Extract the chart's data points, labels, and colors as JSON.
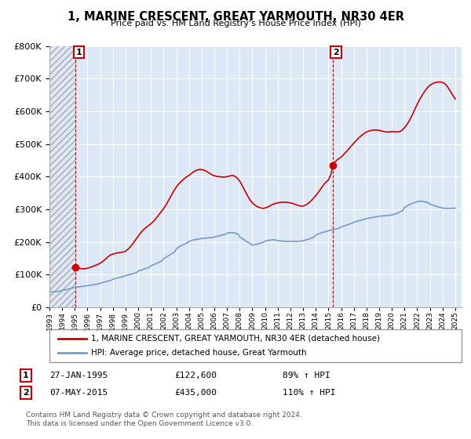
{
  "title": "1, MARINE CRESCENT, GREAT YARMOUTH, NR30 4ER",
  "subtitle": "Price paid vs. HM Land Registry's House Price Index (HPI)",
  "legend_line1": "1, MARINE CRESCENT, GREAT YARMOUTH, NR30 4ER (detached house)",
  "legend_line2": "HPI: Average price, detached house, Great Yarmouth",
  "footer1": "Contains HM Land Registry data © Crown copyright and database right 2024.",
  "footer2": "This data is licensed under the Open Government Licence v3.0.",
  "annotation1_date": "27-JAN-1995",
  "annotation1_price": "£122,600",
  "annotation1_hpi": "89% ↑ HPI",
  "annotation2_date": "07-MAY-2015",
  "annotation2_price": "£435,000",
  "annotation2_hpi": "110% ↑ HPI",
  "red_color": "#cc0000",
  "blue_color": "#7799cc",
  "point1_x": 1995.07,
  "point1_y": 122600,
  "point2_x": 2015.35,
  "point2_y": 435000,
  "ylim": [
    0,
    800000
  ],
  "xlim_start": 1993.0,
  "xlim_end": 2025.5,
  "hatch_end_x": 1995.07,
  "hpi_line_x": [
    1993.0,
    1993.1,
    1993.2,
    1993.3,
    1993.4,
    1993.5,
    1993.6,
    1993.7,
    1993.8,
    1993.9,
    1994.0,
    1994.1,
    1994.2,
    1994.3,
    1994.4,
    1994.5,
    1994.6,
    1994.7,
    1994.8,
    1994.9,
    1995.0,
    1995.2,
    1995.4,
    1995.6,
    1995.8,
    1996.0,
    1996.3,
    1996.6,
    1996.9,
    1997.0,
    1997.3,
    1997.6,
    1997.9,
    1998.0,
    1998.3,
    1998.6,
    1998.9,
    1999.0,
    1999.3,
    1999.6,
    1999.9,
    2000.0,
    2000.3,
    2000.6,
    2000.9,
    2001.0,
    2001.3,
    2001.6,
    2001.9,
    2002.0,
    2002.3,
    2002.6,
    2002.9,
    2003.0,
    2003.3,
    2003.6,
    2003.9,
    2004.0,
    2004.3,
    2004.6,
    2004.9,
    2005.0,
    2005.3,
    2005.6,
    2005.9,
    2006.0,
    2006.3,
    2006.6,
    2006.9,
    2007.0,
    2007.3,
    2007.6,
    2007.9,
    2008.0,
    2008.3,
    2008.6,
    2008.9,
    2009.0,
    2009.3,
    2009.6,
    2009.9,
    2010.0,
    2010.3,
    2010.6,
    2010.9,
    2011.0,
    2011.3,
    2011.6,
    2011.9,
    2012.0,
    2012.3,
    2012.6,
    2012.9,
    2013.0,
    2013.3,
    2013.6,
    2013.9,
    2014.0,
    2014.3,
    2014.6,
    2014.9,
    2015.0,
    2015.3,
    2015.6,
    2015.9,
    2016.0,
    2016.3,
    2016.6,
    2016.9,
    2017.0,
    2017.3,
    2017.6,
    2017.9,
    2018.0,
    2018.3,
    2018.6,
    2018.9,
    2019.0,
    2019.3,
    2019.6,
    2019.9,
    2020.0,
    2020.3,
    2020.6,
    2020.9,
    2021.0,
    2021.3,
    2021.6,
    2021.9,
    2022.0,
    2022.3,
    2022.6,
    2022.9,
    2023.0,
    2023.3,
    2023.6,
    2023.9,
    2024.0,
    2024.3,
    2024.6,
    2024.9,
    2025.0
  ],
  "hpi_line_y": [
    48000,
    47500,
    47000,
    47200,
    47500,
    48000,
    48500,
    49000,
    49500,
    50000,
    51000,
    52000,
    53000,
    54000,
    55000,
    56000,
    57000,
    58000,
    59000,
    60000,
    61000,
    62000,
    63000,
    64000,
    65000,
    66000,
    68000,
    70000,
    72000,
    74000,
    77000,
    80000,
    83000,
    86000,
    89000,
    92000,
    95000,
    97000,
    100000,
    103000,
    107000,
    111000,
    115000,
    119000,
    123000,
    127000,
    132000,
    137000,
    143000,
    149000,
    156000,
    163000,
    171000,
    179000,
    187000,
    193000,
    198000,
    202000,
    206000,
    208000,
    210000,
    211000,
    212000,
    213000,
    214000,
    215000,
    218000,
    221000,
    224000,
    227000,
    229000,
    228000,
    223000,
    216000,
    208000,
    200000,
    194000,
    190000,
    193000,
    196000,
    200000,
    203000,
    205000,
    207000,
    206000,
    204000,
    203000,
    202000,
    202000,
    202000,
    202000,
    202000,
    203000,
    204000,
    207000,
    211000,
    216000,
    221000,
    226000,
    230000,
    233000,
    235000,
    237000,
    240000,
    243000,
    246000,
    250000,
    254000,
    258000,
    261000,
    264000,
    267000,
    270000,
    272000,
    274000,
    276000,
    278000,
    279000,
    280000,
    281000,
    282000,
    283000,
    286000,
    291000,
    298000,
    306000,
    313000,
    318000,
    322000,
    324000,
    325000,
    323000,
    320000,
    316000,
    312000,
    308000,
    305000,
    304000,
    303000,
    303000,
    303000,
    304000
  ],
  "red_line_x": [
    1995.07,
    1995.2,
    1995.4,
    1995.6,
    1995.8,
    1996.0,
    1996.2,
    1996.4,
    1996.6,
    1996.8,
    1997.0,
    1997.2,
    1997.4,
    1997.6,
    1997.8,
    1998.0,
    1998.2,
    1998.4,
    1998.6,
    1998.8,
    1999.0,
    1999.2,
    1999.4,
    1999.6,
    1999.8,
    2000.0,
    2000.2,
    2000.4,
    2000.6,
    2000.8,
    2001.0,
    2001.2,
    2001.4,
    2001.6,
    2001.8,
    2002.0,
    2002.2,
    2002.4,
    2002.6,
    2002.8,
    2003.0,
    2003.2,
    2003.4,
    2003.6,
    2003.8,
    2004.0,
    2004.2,
    2004.4,
    2004.6,
    2004.8,
    2005.0,
    2005.2,
    2005.4,
    2005.6,
    2005.8,
    2006.0,
    2006.2,
    2006.4,
    2006.6,
    2006.8,
    2007.0,
    2007.2,
    2007.4,
    2007.6,
    2007.8,
    2008.0,
    2008.2,
    2008.4,
    2008.6,
    2008.8,
    2009.0,
    2009.2,
    2009.4,
    2009.6,
    2009.8,
    2010.0,
    2010.2,
    2010.4,
    2010.6,
    2010.8,
    2011.0,
    2011.2,
    2011.4,
    2011.6,
    2011.8,
    2012.0,
    2012.2,
    2012.4,
    2012.6,
    2012.8,
    2013.0,
    2013.2,
    2013.4,
    2013.6,
    2013.8,
    2014.0,
    2014.2,
    2014.4,
    2014.6,
    2014.8,
    2015.0,
    2015.2,
    2015.35,
    2015.5,
    2015.7,
    2016.0,
    2016.2,
    2016.4,
    2016.6,
    2016.8,
    2017.0,
    2017.2,
    2017.4,
    2017.6,
    2017.8,
    2018.0,
    2018.2,
    2018.4,
    2018.6,
    2018.8,
    2019.0,
    2019.2,
    2019.4,
    2019.6,
    2019.8,
    2020.0,
    2020.2,
    2020.4,
    2020.6,
    2020.8,
    2021.0,
    2021.2,
    2021.4,
    2021.6,
    2021.8,
    2022.0,
    2022.2,
    2022.4,
    2022.6,
    2022.8,
    2023.0,
    2023.2,
    2023.4,
    2023.6,
    2023.8,
    2024.0,
    2024.2,
    2024.4,
    2024.6,
    2024.8,
    2025.0
  ],
  "red_line_y": [
    122600,
    121000,
    119000,
    118000,
    118000,
    120000,
    122000,
    125000,
    128000,
    131000,
    135000,
    140000,
    147000,
    154000,
    160000,
    163000,
    165000,
    167000,
    168000,
    169000,
    172000,
    178000,
    186000,
    196000,
    207000,
    218000,
    228000,
    237000,
    244000,
    250000,
    256000,
    263000,
    272000,
    282000,
    292000,
    302000,
    314000,
    328000,
    342000,
    356000,
    368000,
    378000,
    386000,
    393000,
    399000,
    404000,
    410000,
    416000,
    420000,
    422000,
    422000,
    420000,
    416000,
    411000,
    406000,
    403000,
    401000,
    400000,
    399000,
    399000,
    400000,
    402000,
    404000,
    402000,
    396000,
    387000,
    373000,
    358000,
    343000,
    330000,
    320000,
    313000,
    308000,
    305000,
    303000,
    304000,
    307000,
    311000,
    315000,
    318000,
    320000,
    321000,
    322000,
    322000,
    321000,
    320000,
    318000,
    315000,
    312000,
    310000,
    310000,
    313000,
    318000,
    325000,
    333000,
    342000,
    352000,
    363000,
    374000,
    383000,
    390000,
    408000,
    435000,
    445000,
    452000,
    460000,
    468000,
    476000,
    485000,
    494000,
    503000,
    511000,
    519000,
    526000,
    532000,
    537000,
    540000,
    542000,
    543000,
    543000,
    542000,
    540000,
    538000,
    537000,
    537000,
    538000,
    538000,
    537000,
    538000,
    542000,
    550000,
    560000,
    573000,
    588000,
    605000,
    622000,
    637000,
    650000,
    662000,
    672000,
    680000,
    685000,
    688000,
    690000,
    690000,
    689000,
    684000,
    675000,
    663000,
    650000,
    638000
  ]
}
